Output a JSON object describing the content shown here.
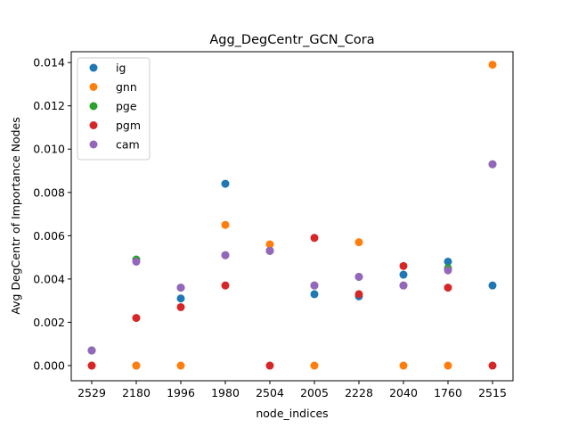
{
  "chart_data": {
    "type": "scatter",
    "title": "Agg_DegCentr_GCN_Cora",
    "xlabel": "node_indices",
    "ylabel": "Avg DegCentr of Importance Nodes",
    "categories": [
      "2529",
      "2180",
      "1996",
      "1980",
      "2504",
      "2005",
      "2228",
      "2040",
      "1760",
      "2515"
    ],
    "ylim": [
      -0.0007,
      0.0145
    ],
    "yticks": [
      0.0,
      0.002,
      0.004,
      0.006,
      0.008,
      0.01,
      0.012,
      0.014
    ],
    "ytick_labels": [
      "0.000",
      "0.002",
      "0.004",
      "0.006",
      "0.008",
      "0.010",
      "0.012",
      "0.014"
    ],
    "grid": false,
    "legend_position": "top-left",
    "series": [
      {
        "name": "ig",
        "color": "#1f77b4",
        "values": [
          0.0007,
          0.0,
          0.0031,
          0.0084,
          0.0053,
          0.0033,
          0.0032,
          0.0042,
          0.0048,
          0.0037
        ]
      },
      {
        "name": "gnn",
        "color": "#ff7f0e",
        "values": [
          0.0,
          0.0,
          0.0,
          0.0065,
          0.0056,
          0.0,
          0.0057,
          0.0,
          0.0,
          0.0139
        ]
      },
      {
        "name": "pge",
        "color": "#2ca02c",
        "values": [
          0.0007,
          0.0049,
          0.0036,
          0.0051,
          0.0053,
          0.0037,
          0.0041,
          0.0037,
          0.0045,
          0.0093
        ]
      },
      {
        "name": "pgm",
        "color": "#d62728",
        "values": [
          0.0,
          0.0022,
          0.0027,
          0.0037,
          0.0,
          0.0059,
          0.0033,
          0.0046,
          0.0036,
          0.0
        ]
      },
      {
        "name": "cam",
        "color": "#9467bd",
        "values": [
          0.0007,
          0.0048,
          0.0036,
          0.0051,
          0.0053,
          0.0037,
          0.0041,
          0.0037,
          0.0044,
          0.0093
        ]
      }
    ]
  }
}
